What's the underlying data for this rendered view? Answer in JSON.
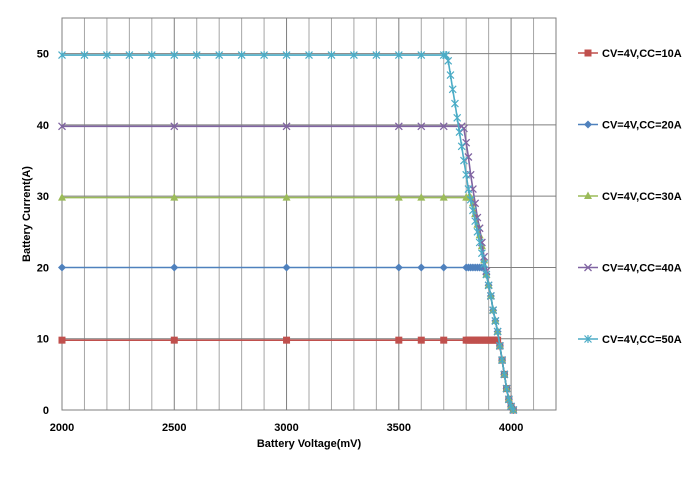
{
  "chart_data": {
    "type": "line",
    "xlabel": "Battery Voltage(mV)",
    "ylabel": "Battery  Current(A)",
    "xlim": [
      2000,
      4200
    ],
    "ylim": [
      0,
      55
    ],
    "x_ticks": [
      2000,
      2500,
      3000,
      3500,
      4000
    ],
    "y_ticks": [
      0,
      10,
      20,
      30,
      40,
      50
    ],
    "grid": true,
    "legend_position": "right",
    "series": [
      {
        "name": "CV=4V,CC=10A",
        "color": "#c0504d",
        "marker": "square",
        "points": [
          [
            2000,
            9.8
          ],
          [
            2500,
            9.8
          ],
          [
            3000,
            9.8
          ],
          [
            3500,
            9.8
          ],
          [
            3600,
            9.8
          ],
          [
            3700,
            9.8
          ],
          [
            3800,
            9.8
          ],
          [
            3810,
            9.8
          ],
          [
            3820,
            9.8
          ],
          [
            3830,
            9.8
          ],
          [
            3840,
            9.8
          ],
          [
            3850,
            9.8
          ],
          [
            3860,
            9.8
          ],
          [
            3870,
            9.8
          ],
          [
            3880,
            9.8
          ],
          [
            3890,
            9.8
          ],
          [
            3900,
            9.8
          ],
          [
            3910,
            9.8
          ],
          [
            3920,
            9.8
          ],
          [
            3930,
            9.8
          ],
          [
            3940,
            9.8
          ],
          [
            3950,
            9
          ],
          [
            3960,
            7
          ],
          [
            3970,
            5
          ],
          [
            3980,
            3
          ],
          [
            3990,
            1.5
          ],
          [
            4000,
            0.5
          ],
          [
            4010,
            0
          ]
        ]
      },
      {
        "name": "CV=4V,CC=20A",
        "color": "#4f81bd",
        "marker": "diamond",
        "points": [
          [
            2000,
            20
          ],
          [
            2500,
            20
          ],
          [
            3000,
            20
          ],
          [
            3500,
            20
          ],
          [
            3600,
            20
          ],
          [
            3700,
            20
          ],
          [
            3800,
            20
          ],
          [
            3810,
            20
          ],
          [
            3820,
            20
          ],
          [
            3830,
            20
          ],
          [
            3840,
            20
          ],
          [
            3850,
            20
          ],
          [
            3860,
            20
          ],
          [
            3870,
            20
          ],
          [
            3880,
            20
          ],
          [
            3890,
            19
          ],
          [
            3900,
            17.5
          ],
          [
            3910,
            16
          ],
          [
            3920,
            14
          ],
          [
            3930,
            12.5
          ],
          [
            3940,
            11
          ],
          [
            3950,
            9
          ],
          [
            3960,
            7
          ],
          [
            3970,
            5
          ],
          [
            3980,
            3
          ],
          [
            3990,
            1.5
          ],
          [
            4000,
            0.5
          ],
          [
            4010,
            0
          ]
        ]
      },
      {
        "name": "CV=4V,CC=30A",
        "color": "#9bbb59",
        "marker": "triangle",
        "points": [
          [
            2000,
            29.8
          ],
          [
            2500,
            29.8
          ],
          [
            3000,
            29.8
          ],
          [
            3500,
            29.8
          ],
          [
            3600,
            29.8
          ],
          [
            3700,
            29.8
          ],
          [
            3800,
            29.8
          ],
          [
            3810,
            29.8
          ],
          [
            3820,
            29.8
          ],
          [
            3830,
            29
          ],
          [
            3840,
            27.5
          ],
          [
            3850,
            26
          ],
          [
            3860,
            24.5
          ],
          [
            3870,
            23
          ],
          [
            3880,
            21
          ],
          [
            3890,
            19
          ],
          [
            3900,
            17.5
          ],
          [
            3910,
            16
          ],
          [
            3920,
            14
          ],
          [
            3930,
            12.5
          ],
          [
            3940,
            11
          ],
          [
            3950,
            9
          ],
          [
            3960,
            7
          ],
          [
            3970,
            5
          ],
          [
            3980,
            3
          ],
          [
            3990,
            1.5
          ],
          [
            4000,
            0.5
          ],
          [
            4010,
            0
          ]
        ]
      },
      {
        "name": "CV=4V,CC=40A",
        "color": "#8064a2",
        "marker": "x",
        "points": [
          [
            2000,
            39.8
          ],
          [
            2500,
            39.8
          ],
          [
            3000,
            39.8
          ],
          [
            3500,
            39.8
          ],
          [
            3600,
            39.8
          ],
          [
            3700,
            39.8
          ],
          [
            3780,
            39.8
          ],
          [
            3790,
            39.5
          ],
          [
            3800,
            37.5
          ],
          [
            3810,
            35.5
          ],
          [
            3820,
            33
          ],
          [
            3830,
            31
          ],
          [
            3840,
            29
          ],
          [
            3850,
            27
          ],
          [
            3860,
            25.5
          ],
          [
            3870,
            23.5
          ],
          [
            3880,
            21.5
          ],
          [
            3890,
            19.5
          ],
          [
            3900,
            17.5
          ],
          [
            3910,
            16
          ],
          [
            3920,
            14
          ],
          [
            3930,
            12.5
          ],
          [
            3940,
            11
          ],
          [
            3950,
            9
          ],
          [
            3960,
            7
          ],
          [
            3970,
            5
          ],
          [
            3980,
            3
          ],
          [
            3990,
            1.5
          ],
          [
            4000,
            0.5
          ],
          [
            4010,
            0
          ]
        ]
      },
      {
        "name": "CV=4V,CC=50A",
        "color": "#4bacc6",
        "marker": "star",
        "points": [
          [
            2000,
            49.8
          ],
          [
            2100,
            49.8
          ],
          [
            2200,
            49.8
          ],
          [
            2300,
            49.8
          ],
          [
            2400,
            49.8
          ],
          [
            2500,
            49.8
          ],
          [
            2600,
            49.8
          ],
          [
            2700,
            49.8
          ],
          [
            2800,
            49.8
          ],
          [
            2900,
            49.8
          ],
          [
            3000,
            49.8
          ],
          [
            3100,
            49.8
          ],
          [
            3200,
            49.8
          ],
          [
            3300,
            49.8
          ],
          [
            3400,
            49.8
          ],
          [
            3500,
            49.8
          ],
          [
            3600,
            49.8
          ],
          [
            3700,
            49.8
          ],
          [
            3710,
            49.8
          ],
          [
            3720,
            49
          ],
          [
            3730,
            47
          ],
          [
            3740,
            45
          ],
          [
            3750,
            43
          ],
          [
            3760,
            41
          ],
          [
            3770,
            39
          ],
          [
            3780,
            37
          ],
          [
            3790,
            35
          ],
          [
            3800,
            33
          ],
          [
            3810,
            31
          ],
          [
            3820,
            29.5
          ],
          [
            3830,
            28
          ],
          [
            3840,
            26.5
          ],
          [
            3850,
            25
          ],
          [
            3860,
            23.5
          ],
          [
            3870,
            22
          ],
          [
            3880,
            20.5
          ],
          [
            3890,
            19
          ],
          [
            3900,
            17.5
          ],
          [
            3910,
            16
          ],
          [
            3920,
            14
          ],
          [
            3930,
            12.5
          ],
          [
            3940,
            11
          ],
          [
            3950,
            9
          ],
          [
            3960,
            7
          ],
          [
            3970,
            5
          ],
          [
            3980,
            3
          ],
          [
            3990,
            1.5
          ],
          [
            4000,
            0.5
          ],
          [
            4010,
            0
          ]
        ]
      }
    ]
  }
}
